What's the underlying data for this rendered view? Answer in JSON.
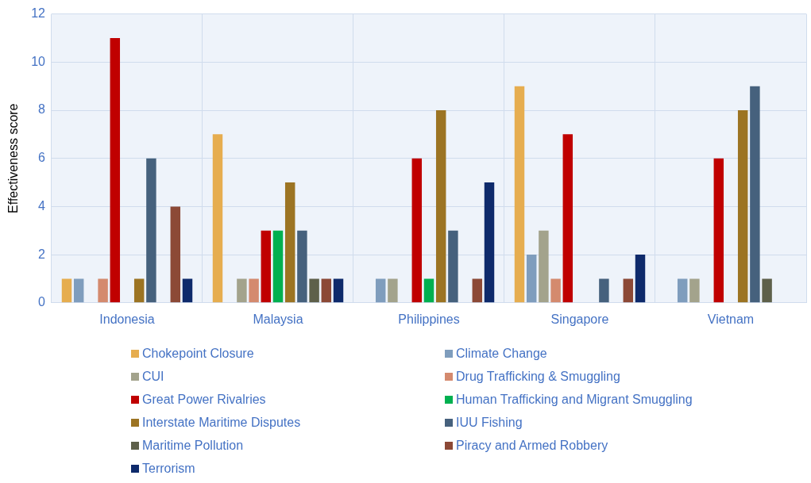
{
  "chart_data": {
    "type": "bar",
    "ylabel": "Effectiveness score",
    "categories": [
      "Indonesia",
      "Malaysia",
      "Philippines",
      "Singapore",
      "Vietnam"
    ],
    "series": [
      {
        "name": "Chokepoint Closure",
        "color": "#e6ad4f",
        "values": [
          1,
          7,
          0,
          9,
          0
        ]
      },
      {
        "name": "Climate Change",
        "color": "#7f9dbd",
        "values": [
          1,
          0,
          1,
          2,
          1
        ]
      },
      {
        "name": "CUI",
        "color": "#a3a38c",
        "values": [
          0,
          1,
          1,
          3,
          1
        ]
      },
      {
        "name": "Drug Trafficking & Smuggling",
        "color": "#d48a6e",
        "values": [
          1,
          1,
          0,
          1,
          0
        ]
      },
      {
        "name": "Great Power Rivalries",
        "color": "#c00000",
        "values": [
          11,
          3,
          6,
          7,
          6
        ]
      },
      {
        "name": "Human Trafficking and Migrant Smuggling",
        "color": "#00b050",
        "values": [
          0,
          3,
          1,
          0,
          0
        ]
      },
      {
        "name": "Interstate Maritime Disputes",
        "color": "#9c7423",
        "values": [
          1,
          5,
          8,
          0,
          8
        ]
      },
      {
        "name": "IUU Fishing",
        "color": "#46617d",
        "values": [
          6,
          3,
          3,
          1,
          9
        ]
      },
      {
        "name": "Maritime Pollution",
        "color": "#5e604a",
        "values": [
          0,
          1,
          0,
          0,
          1
        ]
      },
      {
        "name": "Piracy and Armed Robbery",
        "color": "#8c4936",
        "values": [
          4,
          1,
          1,
          1,
          0
        ]
      },
      {
        "name": "Terrorism",
        "color": "#0e2a6b",
        "values": [
          1,
          1,
          5,
          2,
          0
        ]
      }
    ],
    "ylim": [
      0,
      12
    ],
    "yticks": [
      0,
      2,
      4,
      6,
      8,
      10,
      12
    ],
    "grid": true,
    "legend": "bottom"
  }
}
